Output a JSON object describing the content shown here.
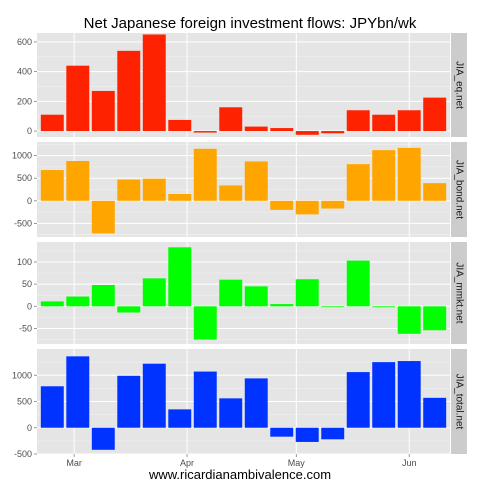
{
  "chart_data": {
    "type": "bar",
    "title": "Net Japanese foreign investment flows: JPYbn/wk",
    "xlabel": "",
    "ylabel": "",
    "grid": true,
    "x_ticks": [
      "Mar",
      "Apr",
      "May",
      "Jun"
    ],
    "x_tick_dates": [
      "2013-03-01",
      "2013-04-01",
      "2013-05-01",
      "2013-06-01"
    ],
    "x": [
      "2013-02-23",
      "2013-03-02",
      "2013-03-09",
      "2013-03-16",
      "2013-03-23",
      "2013-03-30",
      "2013-04-06",
      "2013-04-13",
      "2013-04-20",
      "2013-04-27",
      "2013-05-04",
      "2013-05-11",
      "2013-05-18",
      "2013-05-25",
      "2013-06-01",
      "2013-06-08"
    ],
    "panels": [
      {
        "strip": "JIA_eq.net",
        "color": "#ff2200",
        "ylim": [
          -40,
          660
        ],
        "yticks": [
          0,
          200,
          400,
          600
        ],
        "values": [
          110,
          440,
          270,
          540,
          650,
          75,
          -10,
          160,
          30,
          20,
          -25,
          -15,
          140,
          110,
          140,
          225
        ]
      },
      {
        "strip": "JIA_bond.net",
        "color": "#ffa500",
        "ylim": [
          -800,
          1300
        ],
        "yticks": [
          -500,
          0,
          500,
          1000
        ],
        "values": [
          680,
          880,
          -720,
          470,
          490,
          150,
          1150,
          340,
          870,
          -200,
          -300,
          -170,
          810,
          1120,
          1170,
          390
        ]
      },
      {
        "strip": "JIA_mmkt.net",
        "color": "#00ff00",
        "ylim": [
          -85,
          145
        ],
        "yticks": [
          -50,
          0,
          50,
          100
        ],
        "values": [
          11,
          22,
          48,
          -14,
          63,
          133,
          -75,
          60,
          45,
          5,
          61,
          -1,
          103,
          -2,
          -62,
          -54
        ]
      },
      {
        "strip": "JIA_total.net",
        "color": "#0033ff",
        "ylim": [
          -500,
          1500
        ],
        "yticks": [
          -500,
          0,
          500,
          1000
        ],
        "values": [
          790,
          1360,
          -420,
          990,
          1220,
          350,
          1070,
          560,
          940,
          -170,
          -270,
          -220,
          1060,
          1250,
          1270,
          570
        ]
      }
    ]
  },
  "footer": "www.ricardianambivalence.com"
}
